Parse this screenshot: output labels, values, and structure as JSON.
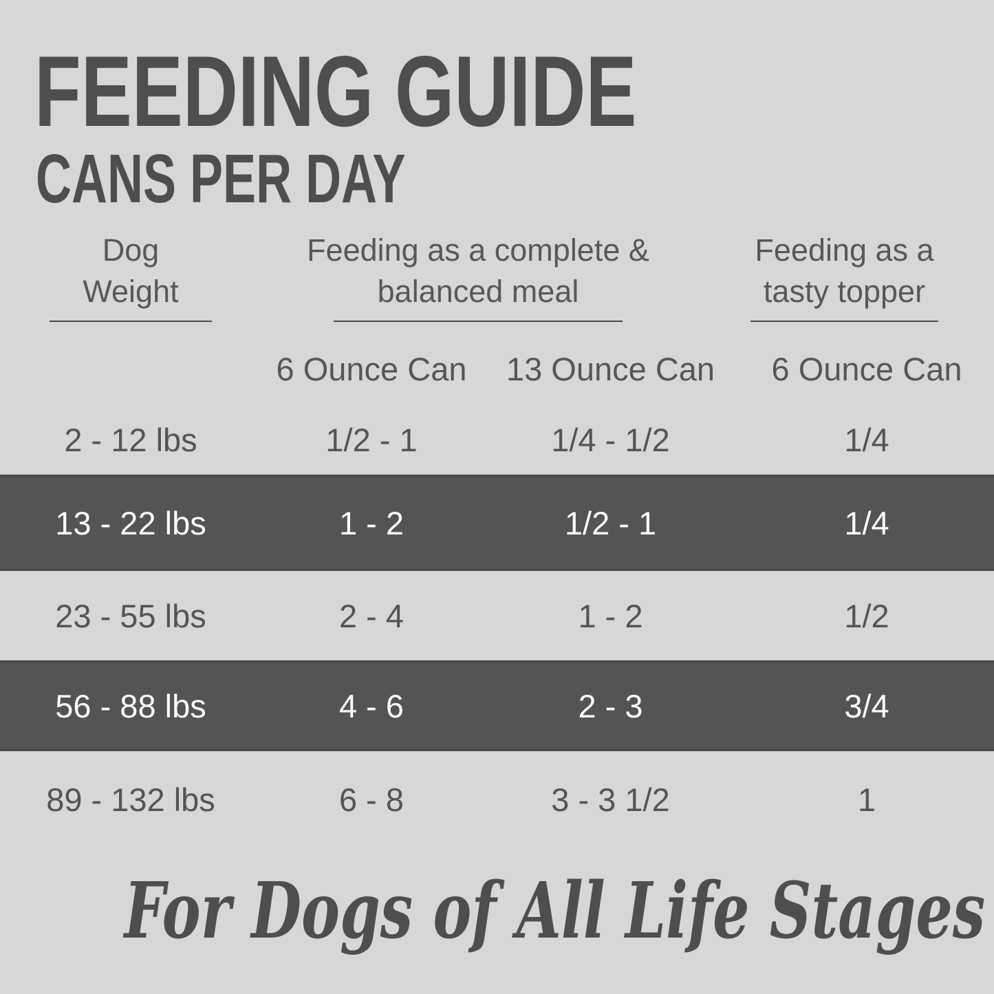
{
  "colors": {
    "background": "#d7d7d9",
    "highlight_row_background": "#545456",
    "title_text": "#4e4e50",
    "body_text": "#545456",
    "highlight_row_text": "#fcfcfc",
    "underline": "#4b4b4d"
  },
  "header": {
    "title": "FEEDING GUIDE",
    "subtitle": "CANS PER DAY"
  },
  "table": {
    "col_groups": [
      {
        "line1": "Dog",
        "line2": "Weight"
      },
      {
        "line1": "Feeding as a complete &",
        "line2": "balanced meal"
      },
      {
        "line1": "Feeding as a",
        "line2": "tasty topper"
      }
    ],
    "subheaders": [
      "6 Ounce Can",
      "13 Ounce Can",
      "6 Ounce Can"
    ],
    "rows": [
      {
        "weight": "2 - 12 lbs",
        "meal_6oz": "1/2 - 1",
        "meal_13oz": "1/4 - 1/2",
        "topper_6oz": "1/4",
        "highlighted": false
      },
      {
        "weight": "13 - 22 lbs",
        "meal_6oz": "1 - 2",
        "meal_13oz": "1/2 - 1",
        "topper_6oz": "1/4",
        "highlighted": true
      },
      {
        "weight": "23 - 55 lbs",
        "meal_6oz": "2 - 4",
        "meal_13oz": "1 - 2",
        "topper_6oz": "1/2",
        "highlighted": false
      },
      {
        "weight": "56 - 88 lbs",
        "meal_6oz": "4 - 6",
        "meal_13oz": "2 - 3",
        "topper_6oz": "3/4",
        "highlighted": true
      },
      {
        "weight": "89 - 132 lbs",
        "meal_6oz": "6 - 8",
        "meal_13oz": "3 - 3 1/2",
        "topper_6oz": "1",
        "highlighted": false
      }
    ]
  },
  "footer": {
    "tagline": "For Dogs of All Life Stages"
  },
  "chart_data": {
    "type": "table",
    "title": "FEEDING GUIDE",
    "subtitle": "CANS PER DAY",
    "column_groups": [
      "Dog Weight",
      "Feeding as a complete & balanced meal",
      "Feeding as a tasty topper"
    ],
    "columns": [
      "Dog Weight",
      "Complete & balanced meal - 6 Ounce Can",
      "Complete & balanced meal - 13 Ounce Can",
      "Tasty topper - 6 Ounce Can"
    ],
    "rows": [
      [
        "2 - 12 lbs",
        "1/2 - 1",
        "1/4 - 1/2",
        "1/4"
      ],
      [
        "13 - 22 lbs",
        "1 - 2",
        "1/2 - 1",
        "1/4"
      ],
      [
        "23 - 55 lbs",
        "2 - 4",
        "1 - 2",
        "1/2"
      ],
      [
        "56 - 88 lbs",
        "4 - 6",
        "2 - 3",
        "3/4"
      ],
      [
        "89 - 132 lbs",
        "6 - 8",
        "3 - 3 1/2",
        "1"
      ]
    ],
    "highlighted_rows": [
      1,
      3
    ],
    "footnote": "For Dogs of All Life Stages"
  }
}
